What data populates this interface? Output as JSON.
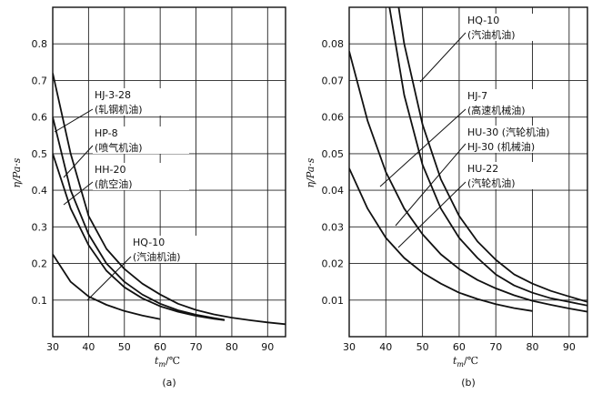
{
  "figure": {
    "panel_a_caption": "(a)",
    "panel_b_caption": "(b)"
  },
  "chart_data": [
    {
      "type": "line",
      "id": "a",
      "xlabel_main": "t",
      "xlabel_sub": "m",
      "xlabel_unit": "/℃",
      "ylabel": "η/Pa·s",
      "xlim": [
        30,
        95
      ],
      "ylim": [
        0,
        0.9
      ],
      "grid": true,
      "xticks": [
        30,
        40,
        50,
        60,
        70,
        80,
        90
      ],
      "yticks": [
        0.1,
        0.2,
        0.3,
        0.4,
        0.5,
        0.6,
        0.7,
        0.8
      ],
      "ytick_labels": [
        "0.1",
        "0.2",
        "0.3",
        "0.4",
        "0.5",
        "0.6",
        "0.7",
        "0.8"
      ],
      "series": [
        {
          "name": "HJ-3-28 (轧钢机油)",
          "x": [
            30,
            35,
            40,
            45,
            50,
            55,
            60,
            65,
            70,
            75,
            80,
            85,
            90,
            95
          ],
          "y": [
            0.72,
            0.5,
            0.33,
            0.24,
            0.185,
            0.145,
            0.115,
            0.09,
            0.073,
            0.061,
            0.052,
            0.045,
            0.039,
            0.034
          ]
        },
        {
          "name": "HP-8 (喷气机油)",
          "x": [
            30,
            35,
            40,
            45,
            50,
            55,
            60,
            65,
            70,
            75,
            78
          ],
          "y": [
            0.6,
            0.4,
            0.28,
            0.2,
            0.15,
            0.115,
            0.09,
            0.072,
            0.06,
            0.051,
            0.046
          ]
        },
        {
          "name": "HH-20 (航空油)",
          "x": [
            30,
            35,
            40,
            45,
            50,
            55,
            60,
            65,
            70,
            75,
            78
          ],
          "y": [
            0.5,
            0.35,
            0.25,
            0.18,
            0.135,
            0.105,
            0.083,
            0.068,
            0.057,
            0.049,
            0.045
          ]
        },
        {
          "name": "HQ-10 (汽油机油)",
          "x": [
            30,
            35,
            40,
            45,
            50,
            55,
            60
          ],
          "y": [
            0.225,
            0.15,
            0.11,
            0.087,
            0.07,
            0.058,
            0.048
          ]
        }
      ],
      "annotations": [
        {
          "line1": "HJ-3-28",
          "line2": "(轧钢机油)"
        },
        {
          "line1": "HP-8",
          "line2": "(喷气机油)"
        },
        {
          "line1": "HH-20",
          "line2": "(航空油)"
        },
        {
          "line1": "HQ-10",
          "line2": "(汽油机油)"
        }
      ]
    },
    {
      "type": "line",
      "id": "b",
      "xlabel_main": "t",
      "xlabel_sub": "m",
      "xlabel_unit": "/℃",
      "ylabel": "η/Pa·s",
      "xlim": [
        30,
        95
      ],
      "ylim": [
        0,
        0.09
      ],
      "grid": true,
      "xticks": [
        30,
        40,
        50,
        60,
        70,
        80,
        90
      ],
      "yticks": [
        0.01,
        0.02,
        0.03,
        0.04,
        0.05,
        0.06,
        0.07,
        0.08
      ],
      "ytick_labels": [
        "0.01",
        "0.02",
        "0.03",
        "0.04",
        "0.05",
        "0.06",
        "0.07",
        "0.08"
      ],
      "series": [
        {
          "name": "HQ-10 (汽油机油)",
          "x": [
            43.5,
            45,
            50,
            55,
            60,
            65,
            70,
            75,
            80,
            85,
            90,
            95
          ],
          "y": [
            0.09,
            0.08,
            0.058,
            0.043,
            0.033,
            0.026,
            0.021,
            0.017,
            0.0145,
            0.0125,
            0.011,
            0.0095
          ]
        },
        {
          "name": "HJ-7 (高速机械油)",
          "x": [
            41,
            45,
            50,
            55,
            60,
            65,
            70,
            75,
            80,
            85,
            90,
            95
          ],
          "y": [
            0.09,
            0.066,
            0.047,
            0.035,
            0.027,
            0.0215,
            0.017,
            0.014,
            0.012,
            0.0105,
            0.0095,
            0.0085
          ]
        },
        {
          "name": "HU-30 (汽轮机油) / HJ-30 (机械油)",
          "x": [
            30,
            35,
            40,
            45,
            50,
            55,
            60,
            65,
            70,
            75,
            80,
            85,
            90,
            95
          ],
          "y": [
            0.078,
            0.059,
            0.045,
            0.035,
            0.028,
            0.0225,
            0.0185,
            0.0155,
            0.0132,
            0.0113,
            0.0098,
            0.0087,
            0.0077,
            0.0068
          ]
        },
        {
          "name": "HU-22 (汽轮机油)",
          "x": [
            30,
            35,
            40,
            45,
            50,
            55,
            60,
            65,
            70,
            75,
            80
          ],
          "y": [
            0.046,
            0.035,
            0.027,
            0.0215,
            0.0175,
            0.0145,
            0.012,
            0.0103,
            0.0089,
            0.0078,
            0.007
          ]
        }
      ],
      "annotations": [
        {
          "line1": "HQ-10",
          "line2": "(汽油机油)"
        },
        {
          "line1": "HJ-7",
          "line2": "(高速机械油)"
        },
        {
          "line1": "HU-30 (汽轮机油)",
          "line2": "HJ-30 (机械油)"
        },
        {
          "line1": "HU-22",
          "line2": "(汽轮机油)"
        }
      ]
    }
  ]
}
